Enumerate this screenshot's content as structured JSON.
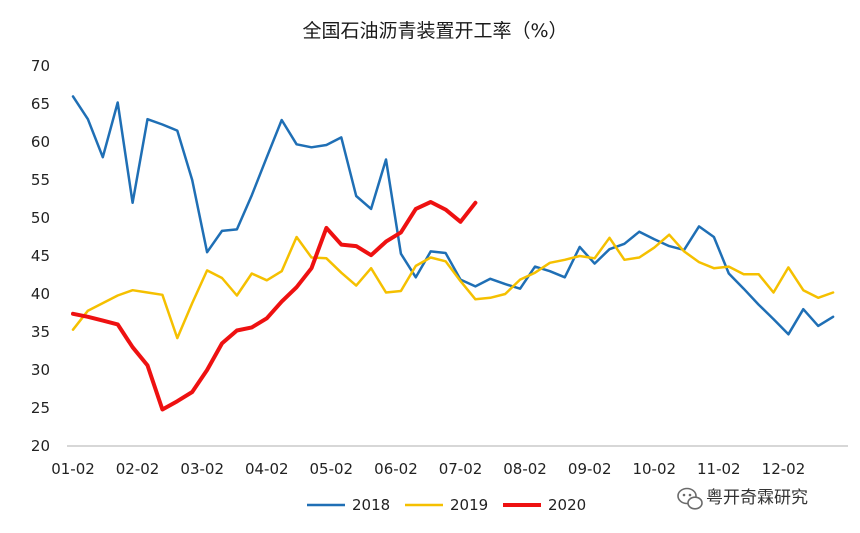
{
  "chart_data": {
    "type": "line",
    "title": "全国石油沥青装置开工率（%）",
    "xlabel": "",
    "ylabel": "",
    "ylim": [
      20,
      70
    ],
    "yticks": [
      20,
      25,
      30,
      35,
      40,
      45,
      50,
      55,
      60,
      65,
      70
    ],
    "xlim": [
      0,
      52
    ],
    "xtick_labels": [
      "01-02",
      "02-02",
      "03-02",
      "04-02",
      "05-02",
      "06-02",
      "07-02",
      "08-02",
      "09-02",
      "10-02",
      "11-02",
      "12-02"
    ],
    "xtick_positions": [
      0,
      4.33,
      8.67,
      13,
      17.33,
      21.67,
      26,
      30.33,
      34.67,
      39,
      43.33,
      47.67
    ],
    "grid": false,
    "legend_position": "bottom",
    "series": [
      {
        "name": "2018",
        "color": "#1f6fb5",
        "width": 2.5,
        "values": [
          66,
          63,
          58,
          65.2,
          52,
          63,
          62.3,
          61.5,
          55,
          45.5,
          48.3,
          48.5,
          53,
          58,
          62.9,
          59.7,
          59.3,
          59.6,
          60.6,
          52.9,
          51.2,
          57.7,
          45.3,
          42.2,
          45.6,
          45.4,
          41.9,
          41,
          42,
          41.3,
          40.7,
          43.6,
          43,
          42.2,
          46.2,
          44,
          45.9,
          46.6,
          48.2,
          47.2,
          46.3,
          45.8,
          48.9,
          47.5,
          42.7,
          40.7,
          38.6,
          36.7,
          34.7,
          38,
          35.8,
          37
        ]
      },
      {
        "name": "2019",
        "color": "#f5c000",
        "width": 2.5,
        "values": [
          35.3,
          37.8,
          38.8,
          39.8,
          40.5,
          40.2,
          39.9,
          34.2,
          38.8,
          43.1,
          42.1,
          39.8,
          42.7,
          41.8,
          43,
          47.5,
          44.8,
          44.7,
          42.8,
          41.1,
          43.4,
          40.2,
          40.4,
          43.7,
          44.8,
          44.3,
          41.7,
          39.3,
          39.5,
          40,
          41.9,
          42.8,
          44.1,
          44.5,
          45,
          44.7,
          47.4,
          44.5,
          44.8,
          46.1,
          47.8,
          45.6,
          44.2,
          43.4,
          43.6,
          42.6,
          42.6,
          40.2,
          43.5,
          40.5,
          39.5,
          40.2
        ]
      },
      {
        "name": "2020",
        "color": "#ee1111",
        "width": 4,
        "values": [
          37.4,
          37,
          36.5,
          36,
          33,
          30.6,
          24.8,
          25.9,
          27.1,
          30,
          33.5,
          35.2,
          35.6,
          36.8,
          39,
          40.9,
          43.4,
          48.7,
          46.5,
          46.3,
          45.1,
          46.9,
          48.1,
          51.2,
          52.1,
          51.1,
          49.5,
          52
        ]
      }
    ]
  },
  "watermark": {
    "text": "粤开奇霖研究",
    "icon": "wechat-icon"
  }
}
